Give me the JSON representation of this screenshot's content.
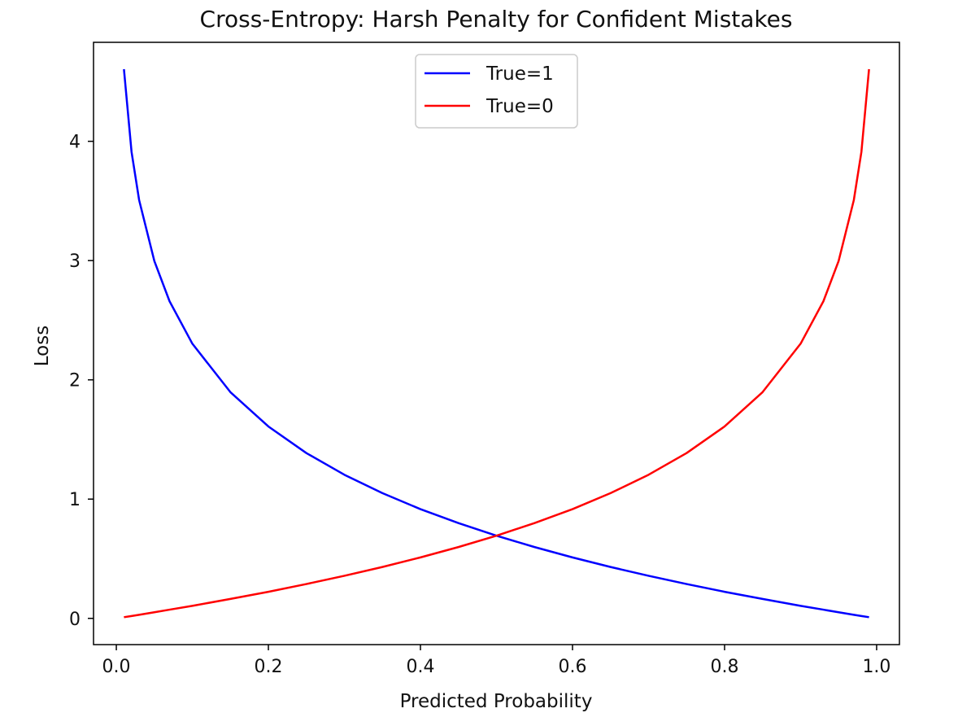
{
  "chart_data": {
    "type": "line",
    "title": "Cross-Entropy: Harsh Penalty for Confident Mistakes",
    "xlabel": "Predicted Probability",
    "ylabel": "Loss",
    "xlim": [
      -0.03,
      1.03
    ],
    "ylim": [
      -0.22,
      4.83
    ],
    "xticks": [
      0.0,
      0.2,
      0.4,
      0.6,
      0.8,
      1.0
    ],
    "xtick_labels": [
      "0.0",
      "0.2",
      "0.4",
      "0.6",
      "0.8",
      "1.0"
    ],
    "yticks": [
      0,
      1,
      2,
      3,
      4
    ],
    "ytick_labels": [
      "0",
      "1",
      "2",
      "3",
      "4"
    ],
    "grid": false,
    "legend_position": "top-center",
    "x": [
      0.01,
      0.02,
      0.03,
      0.05,
      0.07,
      0.1,
      0.15,
      0.2,
      0.25,
      0.3,
      0.35,
      0.4,
      0.45,
      0.5,
      0.55,
      0.6,
      0.65,
      0.7,
      0.75,
      0.8,
      0.85,
      0.9,
      0.93,
      0.95,
      0.97,
      0.98,
      0.99
    ],
    "series": [
      {
        "name": "True=1",
        "color": "#0000ff",
        "values": [
          4.605,
          3.912,
          3.507,
          2.996,
          2.659,
          2.303,
          1.897,
          1.609,
          1.386,
          1.204,
          1.05,
          0.916,
          0.799,
          0.693,
          0.598,
          0.511,
          0.431,
          0.357,
          0.288,
          0.223,
          0.163,
          0.105,
          0.073,
          0.051,
          0.03,
          0.02,
          0.01
        ]
      },
      {
        "name": "True=0",
        "color": "#ff0000",
        "values": [
          0.01,
          0.02,
          0.03,
          0.051,
          0.073,
          0.105,
          0.163,
          0.223,
          0.288,
          0.357,
          0.431,
          0.511,
          0.598,
          0.693,
          0.799,
          0.916,
          1.05,
          1.204,
          1.386,
          1.609,
          1.897,
          2.303,
          2.659,
          2.996,
          3.507,
          3.912,
          4.605
        ]
      }
    ]
  }
}
